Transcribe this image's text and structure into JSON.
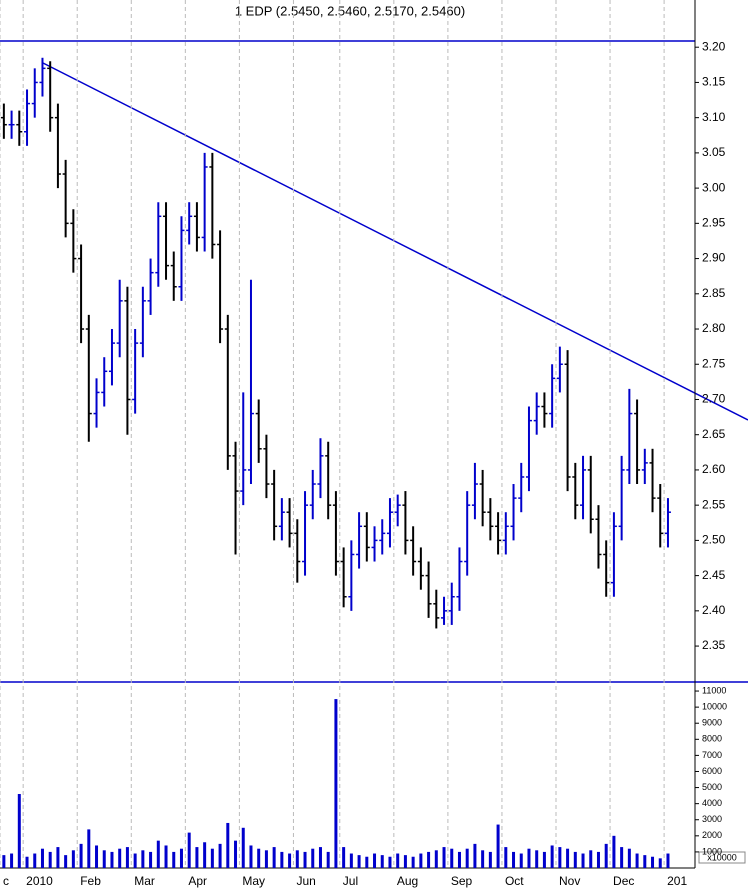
{
  "chart_data": [
    {
      "type": "ohlc",
      "title": "1 EDP (2.5450, 2.5460, 2.5170, 2.5460)",
      "categories": [
        "c",
        null,
        null,
        "2010",
        null,
        null,
        null,
        null,
        null,
        null,
        "Feb",
        null,
        null,
        null,
        null,
        null,
        null,
        "Mar",
        null,
        null,
        null,
        null,
        null,
        null,
        "Apr",
        null,
        null,
        null,
        null,
        null,
        null,
        "May",
        null,
        null,
        null,
        null,
        null,
        null,
        "Jun",
        null,
        null,
        null,
        null,
        null,
        "Jul",
        null,
        null,
        null,
        null,
        null,
        null,
        "Aug",
        null,
        null,
        null,
        null,
        null,
        null,
        "Sep",
        null,
        null,
        null,
        null,
        null,
        null,
        "Oct",
        null,
        null,
        null,
        null,
        null,
        null,
        "Nov",
        null,
        null,
        null,
        null,
        null,
        null,
        "Dec",
        null,
        null,
        null,
        null,
        null,
        null,
        "201",
        null,
        null,
        null
      ],
      "open": [
        3.1,
        3.09,
        3.09,
        3.08,
        3.12,
        3.15,
        3.17,
        3.1,
        3.02,
        2.95,
        2.9,
        2.8,
        2.68,
        2.71,
        2.74,
        2.78,
        2.84,
        2.7,
        2.78,
        2.84,
        2.88,
        2.96,
        2.89,
        2.86,
        2.94,
        2.96,
        2.93,
        3.03,
        2.92,
        2.8,
        2.62,
        2.57,
        2.6,
        2.68,
        2.63,
        2.58,
        2.52,
        2.54,
        2.51,
        2.47,
        2.55,
        2.58,
        2.62,
        2.55,
        2.47,
        2.42,
        2.48,
        2.52,
        2.49,
        2.5,
        2.51,
        2.54,
        2.55,
        2.5,
        2.47,
        2.45,
        2.41,
        2.39,
        2.4,
        2.42,
        2.47,
        2.55,
        2.58,
        2.54,
        2.52,
        2.5,
        2.52,
        2.56,
        2.59,
        2.67,
        2.69,
        2.68,
        2.73,
        2.75,
        2.59,
        2.55,
        2.6,
        2.53,
        2.48,
        2.44,
        2.52,
        2.6,
        2.68,
        2.6,
        2.61,
        2.56,
        2.51,
        null,
        null,
        null
      ],
      "high": [
        3.12,
        3.11,
        3.11,
        3.14,
        3.17,
        3.185,
        3.18,
        3.12,
        3.04,
        2.97,
        2.92,
        2.82,
        2.73,
        2.76,
        2.8,
        2.87,
        2.86,
        2.8,
        2.86,
        2.9,
        2.98,
        2.98,
        2.91,
        2.96,
        2.98,
        2.98,
        3.05,
        3.05,
        2.94,
        2.82,
        2.64,
        2.71,
        2.87,
        2.7,
        2.65,
        2.6,
        2.56,
        2.56,
        2.53,
        2.57,
        2.6,
        2.645,
        2.64,
        2.57,
        2.49,
        2.5,
        2.54,
        2.54,
        2.52,
        2.53,
        2.56,
        2.565,
        2.57,
        2.52,
        2.49,
        2.47,
        2.43,
        2.42,
        2.44,
        2.49,
        2.57,
        2.61,
        2.6,
        2.56,
        2.54,
        2.54,
        2.58,
        2.61,
        2.69,
        2.71,
        2.71,
        2.75,
        2.775,
        2.77,
        2.61,
        2.62,
        2.62,
        2.55,
        2.5,
        2.54,
        2.62,
        2.715,
        2.7,
        2.63,
        2.63,
        2.58,
        2.56,
        null,
        null,
        null
      ],
      "low": [
        3.07,
        3.07,
        3.06,
        3.06,
        3.1,
        3.13,
        3.08,
        3.0,
        2.93,
        2.88,
        2.78,
        2.64,
        2.66,
        2.69,
        2.72,
        2.76,
        2.65,
        2.68,
        2.76,
        2.82,
        2.86,
        2.87,
        2.84,
        2.84,
        2.92,
        2.91,
        2.91,
        2.9,
        2.78,
        2.6,
        2.48,
        2.55,
        2.58,
        2.61,
        2.56,
        2.5,
        2.5,
        2.49,
        2.44,
        2.45,
        2.53,
        2.56,
        2.53,
        2.45,
        2.405,
        2.4,
        2.46,
        2.47,
        2.47,
        2.48,
        2.49,
        2.52,
        2.48,
        2.45,
        2.43,
        2.39,
        2.375,
        2.38,
        2.38,
        2.4,
        2.45,
        2.53,
        2.52,
        2.5,
        2.48,
        2.48,
        2.5,
        2.54,
        2.57,
        2.65,
        2.66,
        2.66,
        2.71,
        2.57,
        2.53,
        2.53,
        2.51,
        2.46,
        2.42,
        2.42,
        2.5,
        2.58,
        2.58,
        2.58,
        2.54,
        2.49,
        2.49,
        null,
        null,
        null
      ],
      "close": [
        3.09,
        3.09,
        3.08,
        3.12,
        3.15,
        3.17,
        3.1,
        3.02,
        2.95,
        2.9,
        2.8,
        2.68,
        2.71,
        2.74,
        2.78,
        2.84,
        2.7,
        2.78,
        2.84,
        2.88,
        2.96,
        2.89,
        2.86,
        2.94,
        2.96,
        2.93,
        3.03,
        2.92,
        2.8,
        2.62,
        2.57,
        2.6,
        2.68,
        2.63,
        2.58,
        2.52,
        2.54,
        2.51,
        2.47,
        2.55,
        2.58,
        2.62,
        2.55,
        2.47,
        2.42,
        2.48,
        2.52,
        2.49,
        2.5,
        2.51,
        2.54,
        2.55,
        2.5,
        2.47,
        2.45,
        2.41,
        2.39,
        2.4,
        2.42,
        2.47,
        2.55,
        2.58,
        2.54,
        2.52,
        2.5,
        2.52,
        2.56,
        2.59,
        2.67,
        2.69,
        2.68,
        2.73,
        2.75,
        2.59,
        2.55,
        2.6,
        2.53,
        2.48,
        2.44,
        2.52,
        2.6,
        2.68,
        2.6,
        2.61,
        2.56,
        2.51,
        2.54,
        null,
        null,
        null
      ],
      "up_color": "#0000cc",
      "down_color": "#000000",
      "ylim": [
        2.299,
        3.267
      ],
      "yticks": [
        2.35,
        {
          "value": 2.4,
          "label": "2.40"
        },
        2.45,
        {
          "value": 2.5,
          "label": "2.50"
        },
        2.55,
        {
          "value": 2.6,
          "label": "2.60"
        },
        2.65,
        {
          "value": 2.7,
          "label": "2.70"
        },
        2.75,
        {
          "value": 2.8,
          "label": "2.80"
        },
        2.85,
        {
          "value": 2.9,
          "label": "2.90"
        },
        2.95,
        {
          "value": 3.0,
          "label": "3.00"
        },
        3.05,
        {
          "value": 3.1,
          "label": "3.10"
        },
        3.15,
        {
          "value": 3.2,
          "label": "3.20"
        }
      ],
      "grid": true
    },
    {
      "type": "bar",
      "values": [
        800,
        900,
        4600,
        700,
        900,
        1200,
        1000,
        1300,
        800,
        1100,
        1500,
        2400,
        1400,
        1100,
        1000,
        1200,
        1300,
        900,
        1100,
        1000,
        1700,
        1400,
        1000,
        1200,
        2200,
        1300,
        1600,
        1200,
        1500,
        2800,
        1700,
        2500,
        1400,
        1200,
        1100,
        1300,
        1000,
        900,
        1100,
        1000,
        1200,
        1300,
        1000,
        10500,
        1300,
        900,
        800,
        700,
        900,
        800,
        700,
        900,
        800,
        700,
        900,
        1000,
        1100,
        1300,
        1200,
        1000,
        1200,
        1500,
        1100,
        1000,
        2700,
        1300,
        1000,
        900,
        1200,
        1100,
        1000,
        1400,
        1300,
        1200,
        1000,
        900,
        1100,
        1000,
        1500,
        2000,
        1300,
        1200,
        900,
        800,
        700,
        600,
        900,
        null,
        null,
        null
      ],
      "color": "#0000cc",
      "unit_label": "x10000",
      "ylim": [
        0,
        11500
      ],
      "yticks": [
        1000,
        2000,
        3000,
        4000,
        5000,
        6000,
        7000,
        8000,
        9000,
        10000,
        11000
      ]
    }
  ]
}
